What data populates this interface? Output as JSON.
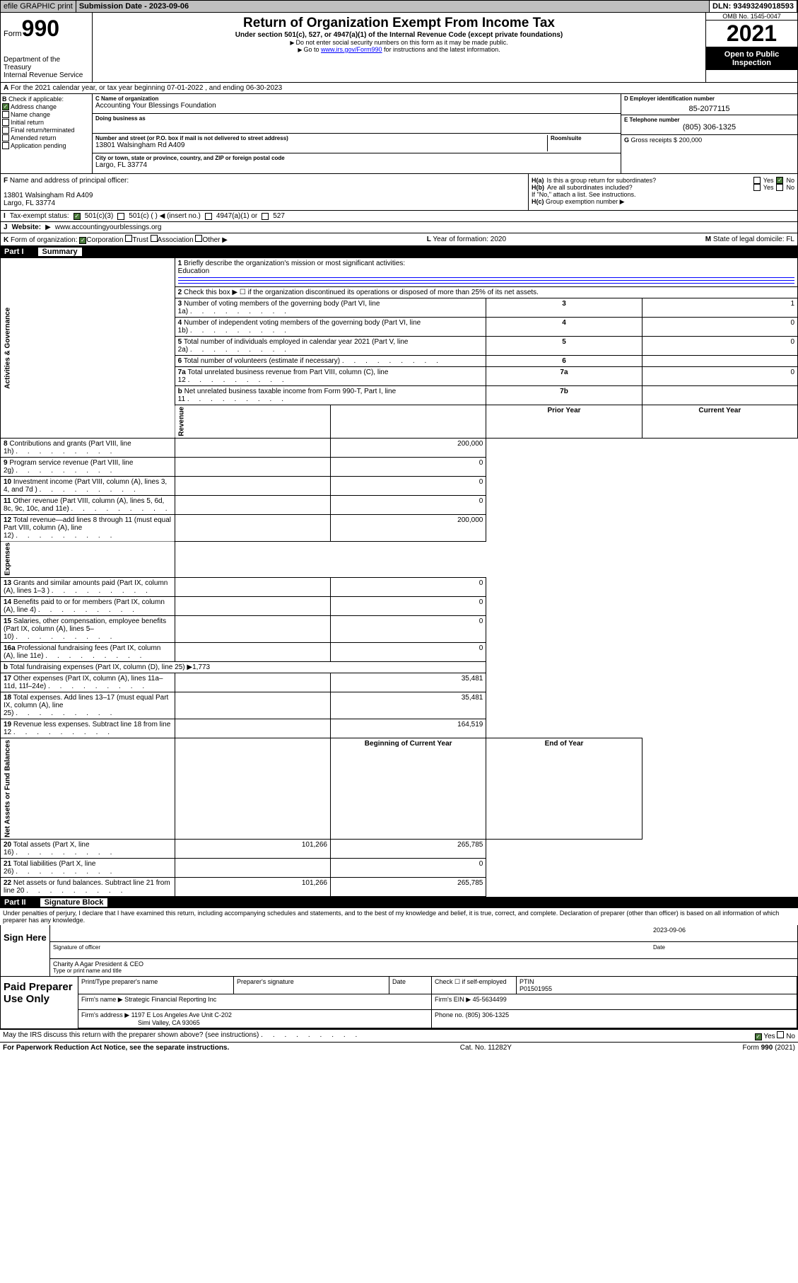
{
  "topbar": {
    "efile": "efile GRAPHIC print",
    "submission": "Submission Date - 2023-09-06",
    "dln": "DLN: 93493249018593"
  },
  "header": {
    "form_prefix": "Form",
    "form_num": "990",
    "dept": "Department of the Treasury",
    "irs": "Internal Revenue Service",
    "title": "Return of Organization Exempt From Income Tax",
    "sub": "Under section 501(c), 527, or 4947(a)(1) of the Internal Revenue Code (except private foundations)",
    "micro1": "Do not enter social security numbers on this form as it may be made public.",
    "micro2_pre": "Go to ",
    "micro2_link": "www.irs.gov/Form990",
    "micro2_post": " for instructions and the latest information.",
    "omb": "OMB No. 1545-0047",
    "year": "2021",
    "otp": "Open to Public Inspection"
  },
  "row_a": {
    "a_label": "A",
    "text": "For the 2021 calendar year, or tax year beginning 07-01-2022   , and ending 06-30-2023"
  },
  "sec_b": {
    "b_label": "B",
    "b_text": "Check if applicable:",
    "checks": [
      {
        "label": "Address change",
        "checked": true
      },
      {
        "label": "Name change",
        "checked": false
      },
      {
        "label": "Initial return",
        "checked": false
      },
      {
        "label": "Final return/terminated",
        "checked": false
      },
      {
        "label": "Amended return",
        "checked": false
      },
      {
        "label": "Application pending",
        "checked": false
      }
    ],
    "c_label": "C Name of organization",
    "c_val": "Accounting Your Blessings Foundation",
    "dba_label": "Doing business as",
    "addr_label": "Number and street (or P.O. box if mail is not delivered to street address)",
    "room_label": "Room/suite",
    "addr_val": "13801 Walsingham Rd A409",
    "city_label": "City or town, state or province, country, and ZIP or foreign postal code",
    "city_val": "Largo, FL  33774",
    "d_label": "D Employer identification number",
    "d_val": "85-2077115",
    "e_label": "E Telephone number",
    "e_val": "(805) 306-1325",
    "g_label": "G",
    "g_text": "Gross receipts $",
    "g_val": "200,000"
  },
  "sec_fh": {
    "f_label": "F",
    "f_text": "Name and address of principal officer:",
    "f_addr1": "13801 Walsingham Rd A409",
    "f_addr2": "Largo, FL  33774",
    "ha_label": "H(a)",
    "ha_text": "Is this a group return for subordinates?",
    "hb_label": "H(b)",
    "hb_text": "Are all subordinates included?",
    "hb_note": "If \"No,\" attach a list. See instructions.",
    "hc_label": "H(c)",
    "hc_text": "Group exemption number",
    "yes": "Yes",
    "no": "No"
  },
  "row_i": {
    "i": "I",
    "label": "Tax-exempt status:",
    "opts": [
      "501(c)(3)",
      "501(c) (  ) ◀ (insert no.)",
      "4947(a)(1) or",
      "527"
    ]
  },
  "row_j": {
    "j": "J",
    "label": "Website:",
    "val": "www.accountingyourblessings.org"
  },
  "row_k": {
    "k": "K",
    "label": "Form of organization:",
    "opts": [
      "Corporation",
      "Trust",
      "Association",
      "Other"
    ],
    "l_label": "L",
    "l_text": "Year of formation:",
    "l_val": "2020",
    "m_label": "M",
    "m_text": "State of legal domicile:",
    "m_val": "FL"
  },
  "part1": {
    "hdr_part": "Part I",
    "hdr_label": "Summary",
    "q1": "Briefly describe the organization's mission or most significant activities:",
    "q1_val": "Education",
    "q2": "Check this box ▶ ☐  if the organization discontinued its operations or disposed of more than 25% of its net assets.",
    "rows_gov": [
      {
        "n": "3",
        "t": "Number of voting members of the governing body (Part VI, line 1a)",
        "box": "3",
        "v": "1"
      },
      {
        "n": "4",
        "t": "Number of independent voting members of the governing body (Part VI, line 1b)",
        "box": "4",
        "v": "0"
      },
      {
        "n": "5",
        "t": "Total number of individuals employed in calendar year 2021 (Part V, line 2a)",
        "box": "5",
        "v": "0"
      },
      {
        "n": "6",
        "t": "Total number of volunteers (estimate if necessary)",
        "box": "6",
        "v": ""
      },
      {
        "n": "7a",
        "t": "Total unrelated business revenue from Part VIII, column (C), line 12",
        "box": "7a",
        "v": "0"
      },
      {
        "n": "b",
        "t": "Net unrelated business taxable income from Form 990-T, Part I, line 11",
        "box": "7b",
        "v": ""
      }
    ],
    "py_label": "Prior Year",
    "cy_label": "Current Year",
    "rows_rev": [
      {
        "n": "8",
        "t": "Contributions and grants (Part VIII, line 1h)",
        "py": "",
        "cy": "200,000"
      },
      {
        "n": "9",
        "t": "Program service revenue (Part VIII, line 2g)",
        "py": "",
        "cy": "0"
      },
      {
        "n": "10",
        "t": "Investment income (Part VIII, column (A), lines 3, 4, and 7d )",
        "py": "",
        "cy": "0"
      },
      {
        "n": "11",
        "t": "Other revenue (Part VIII, column (A), lines 5, 6d, 8c, 9c, 10c, and 11e)",
        "py": "",
        "cy": "0"
      },
      {
        "n": "12",
        "t": "Total revenue—add lines 8 through 11 (must equal Part VIII, column (A), line 12)",
        "py": "",
        "cy": "200,000"
      }
    ],
    "rows_exp": [
      {
        "n": "13",
        "t": "Grants and similar amounts paid (Part IX, column (A), lines 1–3 )",
        "py": "",
        "cy": "0"
      },
      {
        "n": "14",
        "t": "Benefits paid to or for members (Part IX, column (A), line 4)",
        "py": "",
        "cy": "0"
      },
      {
        "n": "15",
        "t": "Salaries, other compensation, employee benefits (Part IX, column (A), lines 5–10)",
        "py": "",
        "cy": "0"
      },
      {
        "n": "16a",
        "t": "Professional fundraising fees (Part IX, column (A), line 11e)",
        "py": "",
        "cy": "0"
      },
      {
        "n": "b",
        "t": "Total fundraising expenses (Part IX, column (D), line 25) ▶1,773",
        "py": null,
        "cy": null
      },
      {
        "n": "17",
        "t": "Other expenses (Part IX, column (A), lines 11a–11d, 11f–24e)",
        "py": "",
        "cy": "35,481"
      },
      {
        "n": "18",
        "t": "Total expenses. Add lines 13–17 (must equal Part IX, column (A), line 25)",
        "py": "",
        "cy": "35,481"
      },
      {
        "n": "19",
        "t": "Revenue less expenses. Subtract line 18 from line 12",
        "py": "",
        "cy": "164,519"
      }
    ],
    "boy_label": "Beginning of Current Year",
    "eoy_label": "End of Year",
    "rows_na": [
      {
        "n": "20",
        "t": "Total assets (Part X, line 16)",
        "py": "101,266",
        "cy": "265,785"
      },
      {
        "n": "21",
        "t": "Total liabilities (Part X, line 26)",
        "py": "",
        "cy": "0"
      },
      {
        "n": "22",
        "t": "Net assets or fund balances. Subtract line 21 from line 20",
        "py": "101,266",
        "cy": "265,785"
      }
    ],
    "side_gov": "Activities & Governance",
    "side_rev": "Revenue",
    "side_exp": "Expenses",
    "side_na": "Net Assets or Fund Balances"
  },
  "part2": {
    "hdr_part": "Part II",
    "hdr_label": "Signature Block",
    "decl": "Under penalties of perjury, I declare that I have examined this return, including accompanying schedules and statements, and to the best of my knowledge and belief, it is true, correct, and complete. Declaration of preparer (other than officer) is based on all information of which preparer has any knowledge.",
    "sign_here": "Sign Here",
    "sig_officer": "Signature of officer",
    "sig_date": "Date",
    "sig_date_val": "2023-09-06",
    "sig_name": "Charity A Agar  President & CEO",
    "sig_name_label": "Type or print name and title",
    "paid_prep": "Paid Preparer Use Only",
    "prep_name_label": "Print/Type preparer's name",
    "prep_sig_label": "Preparer's signature",
    "date_label": "Date",
    "check_if": "Check ☐ if self-employed",
    "ptin_label": "PTIN",
    "ptin_val": "P01501955",
    "firm_name_label": "Firm's name   ▶",
    "firm_name": "Strategic Financial Reporting Inc",
    "firm_ein_label": "Firm's EIN ▶",
    "firm_ein": "45-5634499",
    "firm_addr_label": "Firm's address ▶",
    "firm_addr1": "1197 E Los Angeles Ave Unit C-202",
    "firm_addr2": "Simi Valley, CA  93065",
    "phone_label": "Phone no.",
    "phone_val": "(805) 306-1325",
    "may_irs": "May the IRS discuss this return with the preparer shown above? (see instructions)"
  },
  "footer": {
    "pra": "For Paperwork Reduction Act Notice, see the separate instructions.",
    "cat": "Cat. No. 11282Y",
    "form": "Form 990 (2021)"
  },
  "colors": {
    "link": "#0000ff",
    "checked": "#4a7a3a",
    "gray_btn": "#c0c0c0"
  }
}
